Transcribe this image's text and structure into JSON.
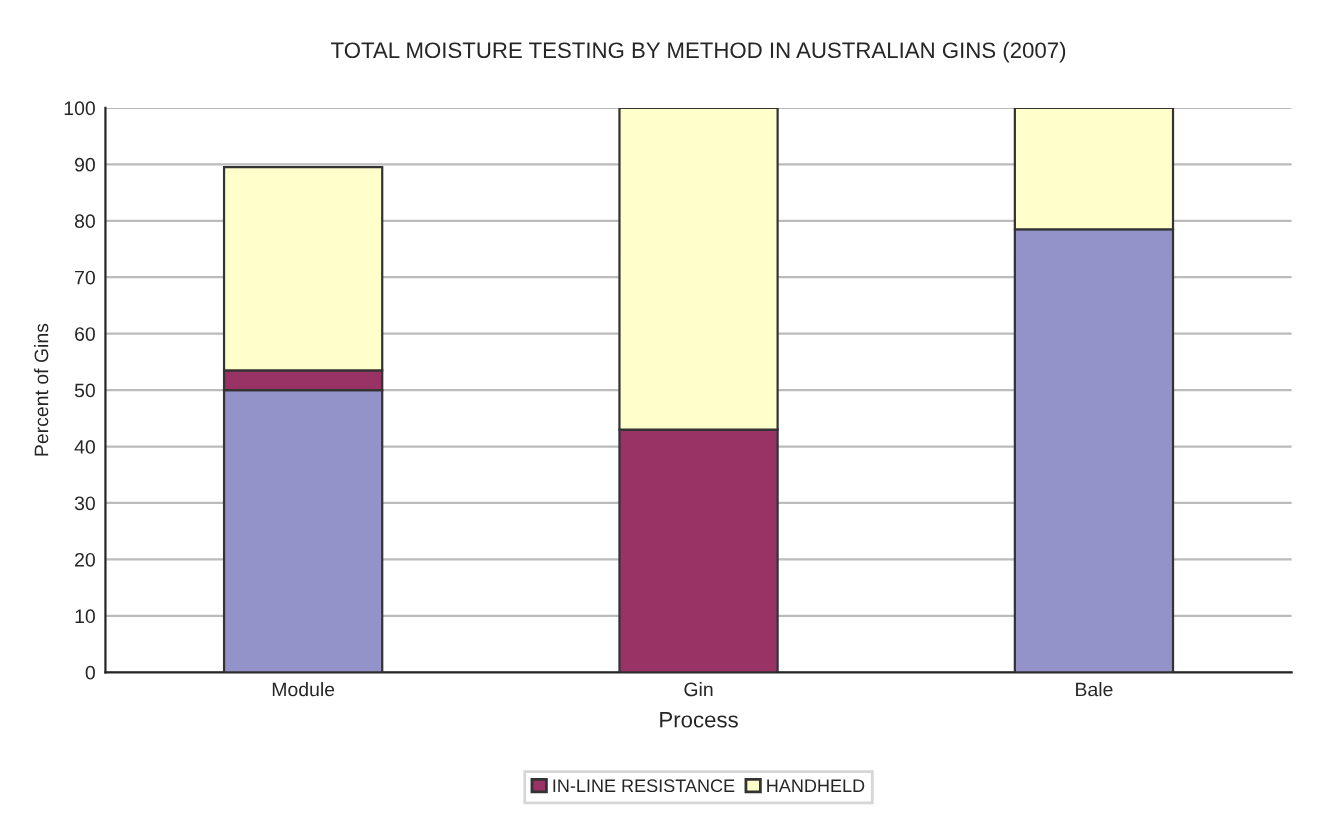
{
  "chart_data": {
    "type": "bar",
    "title": "TOTAL MOISTURE TESTING BY METHOD IN AUSTRALIAN GINS (2007)",
    "xlabel": "Process",
    "ylabel": "Percent of Gins",
    "categories": [
      "Module",
      "Gin",
      "Bale"
    ],
    "stacked": true,
    "series": [
      {
        "color": "#9393c9",
        "values": [
          50,
          0,
          78.5
        ]
      },
      {
        "name": "IN-LINE RESISTANCE",
        "color": "#993366",
        "values": [
          3.5,
          43,
          0
        ]
      },
      {
        "name": "HANDHELD",
        "color": "#ffffcc",
        "values": [
          36,
          57,
          21.5
        ]
      }
    ],
    "ylim": [
      0,
      100
    ],
    "yticks": [
      0,
      10,
      20,
      30,
      40,
      50,
      60,
      70,
      80,
      90,
      100
    ],
    "grid": "y",
    "legend": "bottom"
  }
}
